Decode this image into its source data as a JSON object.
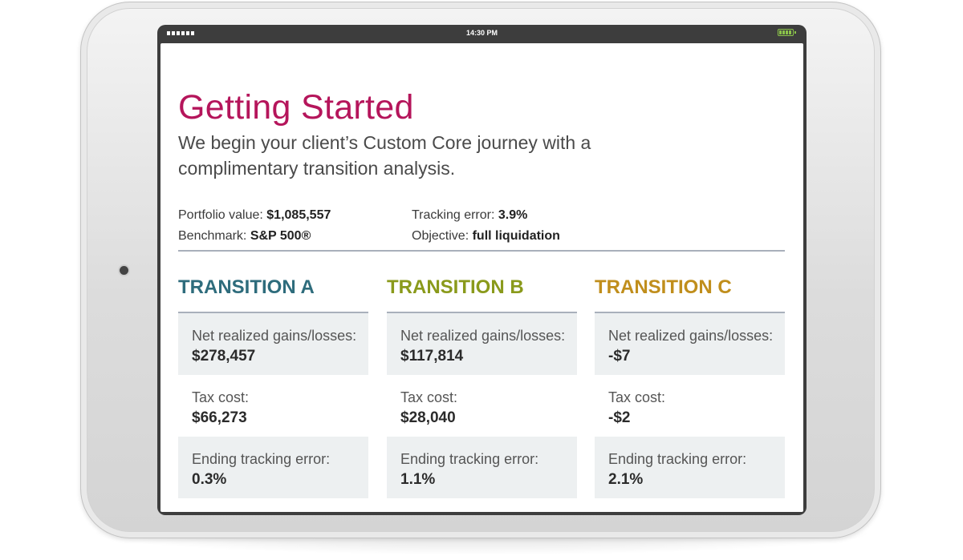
{
  "device": {
    "status_bar": {
      "time": "14:30 PM",
      "battery_color": "#8bc34a"
    }
  },
  "content": {
    "title": "Getting Started",
    "subtitle": "We begin your client’s Custom Core journey with a complimentary transition analysis.",
    "portfolio_label": "Portfolio value: ",
    "portfolio_value": "$1,085,557",
    "benchmark_label": "Benchmark: ",
    "benchmark_value": "S&P 500®",
    "tracking_label": "Tracking error: ",
    "tracking_value": "3.9%",
    "objective_label": "Objective: ",
    "objective_value": "full liquidation"
  },
  "colors": {
    "title": "#b5155b",
    "transition_a": "#2e6c7c",
    "transition_b": "#8a9a1b",
    "transition_c": "#c08e1c",
    "divider": "#a9b0bb",
    "panel": "#edf0f1"
  },
  "transitions": [
    {
      "heading": "TRANSITION A",
      "gains_label": "Net realized gains/losses:",
      "gains_value": "$278,457",
      "tax_label": "Tax cost:",
      "tax_value": "$66,273",
      "ending_label": "Ending tracking error:",
      "ending_value": "0.3%"
    },
    {
      "heading": "TRANSITION B",
      "gains_label": "Net realized gains/losses:",
      "gains_value": "$117,814",
      "tax_label": "Tax cost:",
      "tax_value": "$28,040",
      "ending_label": "Ending tracking error:",
      "ending_value": "1.1%"
    },
    {
      "heading": "TRANSITION C",
      "gains_label": "Net realized gains/losses:",
      "gains_value": "-$7",
      "tax_label": "Tax cost:",
      "tax_value": "-$2",
      "ending_label": "Ending tracking error:",
      "ending_value": "2.1%"
    }
  ]
}
